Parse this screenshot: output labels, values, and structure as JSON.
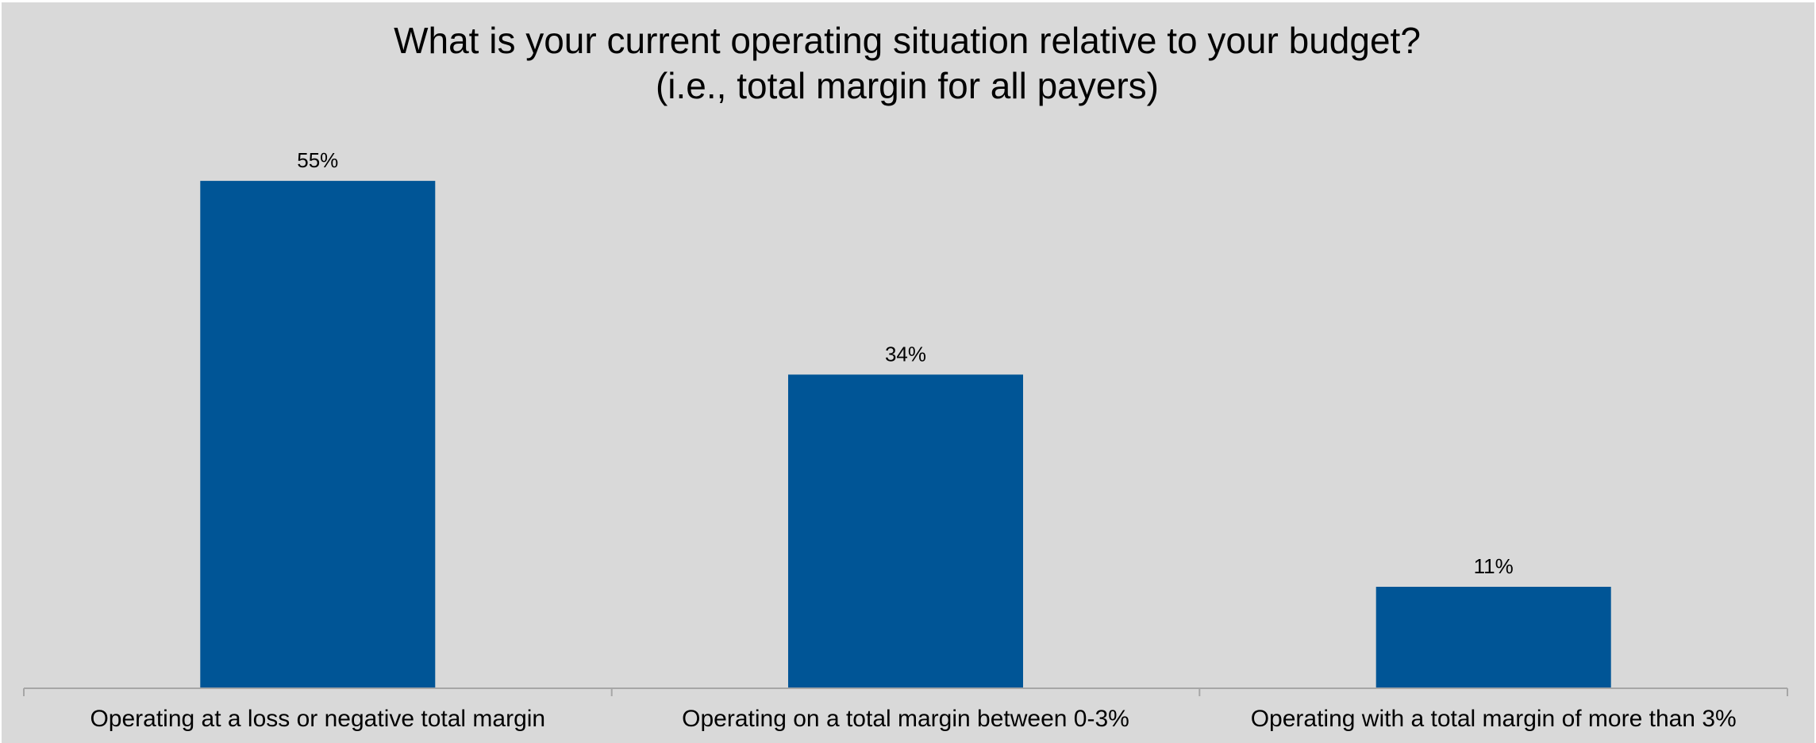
{
  "chart_data": {
    "type": "bar",
    "title": "What is your current operating situation relative to your budget?",
    "subtitle": "(i.e., total margin for all payers)",
    "categories": [
      "Operating at a loss or negative total margin",
      "Operating on a total margin between 0-3%",
      "Operating with a total margin of more than 3%"
    ],
    "values": [
      55,
      34,
      11
    ],
    "data_labels": [
      "55%",
      "34%",
      "11%"
    ],
    "unit": "%",
    "xlabel": "",
    "ylabel": "",
    "ylim": [
      0,
      60
    ],
    "grid": false,
    "legend": "none",
    "colors": {
      "bar": "#005596",
      "background": "#d9d9d9",
      "axis": "#a6a6a6",
      "text": "#000000"
    }
  }
}
